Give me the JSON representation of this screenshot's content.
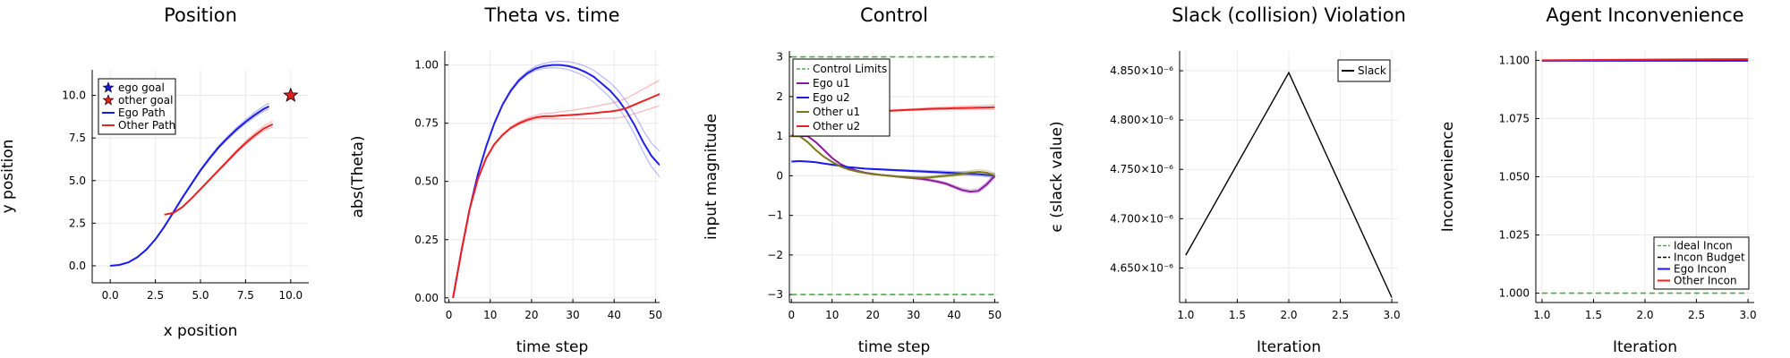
{
  "chart_data": [
    {
      "type": "line",
      "title": "Position",
      "xlabel": "x position",
      "ylabel": "y position",
      "xlim": [
        -1.0,
        11.0
      ],
      "ylim": [
        -1.0,
        11.5
      ],
      "xticks": [
        0.0,
        2.5,
        5.0,
        7.5,
        10.0
      ],
      "yticks": [
        0.0,
        2.5,
        5.0,
        7.5,
        10.0
      ],
      "xtick_labels": [
        "0.0",
        "2.5",
        "5.0",
        "7.5",
        "10.0"
      ],
      "ytick_labels": [
        "0.0",
        "2.5",
        "5.0",
        "7.5",
        "10.0"
      ],
      "grid": true,
      "legend_position": "top-left",
      "series": [
        {
          "name": "ego goal",
          "kind": "marker",
          "marker": "star",
          "color": "#1f1fd0",
          "x": [],
          "y": []
        },
        {
          "name": "other goal",
          "kind": "marker",
          "marker": "star",
          "color": "#e02020",
          "x": [
            10.0
          ],
          "y": [
            10.0
          ]
        },
        {
          "name": "Ego Path",
          "color": "#1a1aee",
          "x": [
            0.0,
            0.5,
            1.0,
            1.5,
            2.0,
            2.5,
            3.0,
            3.5,
            4.0,
            4.5,
            5.0,
            5.5,
            6.0,
            6.5,
            7.0,
            7.5,
            8.0,
            8.5,
            8.8
          ],
          "y": [
            0.0,
            0.05,
            0.2,
            0.5,
            0.95,
            1.55,
            2.3,
            3.15,
            4.0,
            4.8,
            5.6,
            6.3,
            6.95,
            7.5,
            8.0,
            8.45,
            8.85,
            9.2,
            9.35
          ]
        },
        {
          "name": "Other Path",
          "color": "#e82020",
          "x": [
            3.0,
            3.5,
            4.0,
            4.5,
            5.0,
            5.5,
            6.0,
            6.5,
            7.0,
            7.5,
            8.0,
            8.5,
            9.0
          ],
          "y": [
            3.0,
            3.1,
            3.45,
            3.95,
            4.5,
            5.05,
            5.6,
            6.15,
            6.7,
            7.2,
            7.65,
            8.05,
            8.3
          ]
        }
      ]
    },
    {
      "type": "line",
      "title": "Theta vs. time",
      "xlabel": "time step",
      "ylabel": "abs(Theta)",
      "xlim": [
        -1,
        51
      ],
      "ylim": [
        -0.02,
        1.06
      ],
      "xticks": [
        0,
        10,
        20,
        30,
        40,
        50
      ],
      "yticks": [
        0.0,
        0.25,
        0.5,
        0.75,
        1.0
      ],
      "xtick_labels": [
        "0",
        "10",
        "20",
        "30",
        "40",
        "50"
      ],
      "ytick_labels": [
        "0.00",
        "0.25",
        "0.50",
        "0.75",
        "1.00"
      ],
      "grid": true,
      "series": [
        {
          "color": "#2020ee",
          "x": [
            1,
            3,
            5,
            7,
            9,
            11,
            13,
            15,
            17,
            19,
            21,
            23,
            25,
            27,
            29,
            31,
            33,
            35,
            37,
            39,
            41,
            43,
            45,
            47,
            49,
            51
          ],
          "y": [
            0.0,
            0.2,
            0.38,
            0.53,
            0.65,
            0.75,
            0.83,
            0.89,
            0.935,
            0.965,
            0.985,
            0.995,
            1.0,
            1.0,
            0.995,
            0.985,
            0.97,
            0.95,
            0.92,
            0.89,
            0.85,
            0.8,
            0.74,
            0.67,
            0.61,
            0.57
          ]
        },
        {
          "color": "#ee2020",
          "x": [
            1,
            3,
            5,
            7,
            9,
            11,
            13,
            15,
            17,
            19,
            21,
            23,
            25,
            27,
            29,
            31,
            33,
            35,
            37,
            39,
            41,
            43,
            45,
            47,
            49,
            51
          ],
          "y": [
            0.0,
            0.2,
            0.38,
            0.51,
            0.6,
            0.66,
            0.7,
            0.73,
            0.75,
            0.765,
            0.775,
            0.78,
            0.78,
            0.783,
            0.785,
            0.787,
            0.79,
            0.793,
            0.797,
            0.8,
            0.805,
            0.815,
            0.83,
            0.845,
            0.86,
            0.875
          ]
        }
      ]
    },
    {
      "type": "line",
      "title": "Control",
      "xlabel": "time step",
      "ylabel": "input magnitude",
      "xlim": [
        -0.5,
        51
      ],
      "ylim": [
        -3.2,
        3.15
      ],
      "xticks": [
        0,
        10,
        20,
        30,
        40,
        50
      ],
      "yticks": [
        -3,
        -2,
        -1,
        0,
        1,
        2,
        3
      ],
      "xtick_labels": [
        "0",
        "10",
        "20",
        "30",
        "40",
        "50"
      ],
      "ytick_labels": [
        "−3",
        "−2",
        "−1",
        "0",
        "1",
        "2",
        "3"
      ],
      "grid": true,
      "legend_position": "top-left",
      "series": [
        {
          "name": "Control Limits",
          "color": "#55a355",
          "dashed": true,
          "x": [
            0,
            50
          ],
          "y": [
            3,
            3
          ]
        },
        {
          "name": "",
          "color": "#55a355",
          "dashed": true,
          "x": [
            0,
            50
          ],
          "y": [
            -3,
            -3
          ]
        },
        {
          "name": "Ego u1",
          "color": "#8a1a9e",
          "x": [
            0,
            2,
            4,
            6,
            8,
            10,
            12,
            14,
            16,
            18,
            20,
            22,
            24,
            26,
            28,
            30,
            32,
            34,
            36,
            38,
            40,
            42,
            44,
            46,
            48,
            50
          ],
          "y": [
            1.0,
            1.0,
            1.0,
            0.85,
            0.65,
            0.45,
            0.3,
            0.2,
            0.13,
            0.08,
            0.05,
            0.02,
            0.0,
            -0.02,
            -0.04,
            -0.06,
            -0.08,
            -0.11,
            -0.15,
            -0.2,
            -0.28,
            -0.36,
            -0.4,
            -0.38,
            -0.22,
            0.0
          ]
        },
        {
          "name": "Ego u2",
          "color": "#1a1aee",
          "x": [
            0,
            2,
            4,
            6,
            8,
            10,
            12,
            14,
            16,
            18,
            20,
            22,
            24,
            26,
            28,
            30,
            32,
            34,
            36,
            38,
            40,
            42,
            44,
            46,
            48,
            50
          ],
          "y": [
            0.36,
            0.37,
            0.36,
            0.34,
            0.31,
            0.28,
            0.25,
            0.22,
            0.2,
            0.18,
            0.17,
            0.16,
            0.15,
            0.14,
            0.13,
            0.12,
            0.11,
            0.1,
            0.09,
            0.08,
            0.07,
            0.06,
            0.05,
            0.04,
            0.02,
            0.0
          ]
        },
        {
          "name": "Other u1",
          "color": "#7a7a1a",
          "x": [
            0,
            2,
            4,
            6,
            8,
            10,
            12,
            14,
            16,
            18,
            20,
            22,
            24,
            26,
            28,
            30,
            32,
            34,
            36,
            38,
            40,
            42,
            44,
            46,
            48,
            50
          ],
          "y": [
            1.0,
            1.0,
            0.85,
            0.65,
            0.48,
            0.35,
            0.24,
            0.16,
            0.11,
            0.07,
            0.04,
            0.02,
            0.0,
            -0.02,
            -0.03,
            -0.04,
            -0.05,
            -0.04,
            -0.02,
            0.0,
            0.02,
            0.05,
            0.08,
            0.1,
            0.08,
            0.0
          ]
        },
        {
          "name": "Other u2",
          "color": "#ee2020",
          "x": [
            0,
            2,
            4,
            6,
            8,
            10,
            12,
            14,
            16,
            18,
            20,
            22,
            24,
            26,
            28,
            30,
            32,
            34,
            36,
            38,
            40,
            42,
            44,
            46,
            48,
            50
          ],
          "y": [
            1.0,
            1.15,
            1.28,
            1.38,
            1.45,
            1.5,
            1.54,
            1.57,
            1.59,
            1.61,
            1.62,
            1.63,
            1.64,
            1.65,
            1.66,
            1.67,
            1.68,
            1.69,
            1.695,
            1.7,
            1.705,
            1.71,
            1.715,
            1.72,
            1.725,
            1.73
          ]
        }
      ]
    },
    {
      "type": "line",
      "title": "Slack (collision) Violation",
      "xlabel": "Iteration",
      "ylabel": "ϵ (slack value)",
      "xlim": [
        0.94,
        3.06
      ],
      "ylim": [
        4.615e-06,
        4.87e-06
      ],
      "xticks": [
        1.0,
        1.5,
        2.0,
        2.5,
        3.0
      ],
      "yticks": [
        4.65e-06,
        4.7e-06,
        4.75e-06,
        4.8e-06,
        4.85e-06
      ],
      "xtick_labels": [
        "1.0",
        "1.5",
        "2.0",
        "2.5",
        "3.0"
      ],
      "ytick_labels": [
        "4.650×10⁻⁶",
        "4.700×10⁻⁶",
        "4.750×10⁻⁶",
        "4.800×10⁻⁶",
        "4.850×10⁻⁶"
      ],
      "grid": true,
      "legend_position": "top-right",
      "series": [
        {
          "name": "Slack",
          "color": "#000000",
          "x": [
            1.0,
            2.0,
            3.0
          ],
          "y": [
            4.663e-06,
            4.848e-06,
            4.62e-06
          ]
        }
      ]
    },
    {
      "type": "line",
      "title": "Agent Inconvenience",
      "xlabel": "Iteration",
      "ylabel": "Inconvenience",
      "xlim": [
        0.94,
        3.06
      ],
      "ylim": [
        0.996,
        1.104
      ],
      "xticks": [
        1.0,
        1.5,
        2.0,
        2.5,
        3.0
      ],
      "yticks": [
        1.0,
        1.025,
        1.05,
        1.075,
        1.1
      ],
      "xtick_labels": [
        "1.0",
        "1.5",
        "2.0",
        "2.5",
        "3.0"
      ],
      "ytick_labels": [
        "1.000",
        "1.025",
        "1.050",
        "1.075",
        "1.100"
      ],
      "grid": true,
      "legend_position": "bottom-right",
      "series": [
        {
          "name": "Ideal Incon",
          "color": "#55a355",
          "dashed": true,
          "x": [
            1.0,
            2.0,
            3.0
          ],
          "y": [
            1.0,
            1.0,
            1.0
          ]
        },
        {
          "name": "Incon Budget",
          "color": "#000000",
          "dashed": true,
          "x": [
            1.0,
            2.0,
            3.0
          ],
          "y": [
            1.1,
            1.1,
            1.1
          ]
        },
        {
          "name": "Ego Incon",
          "color": "#1a1aee",
          "x": [
            1.0,
            2.0,
            3.0
          ],
          "y": [
            1.0998,
            1.0998,
            1.0998
          ]
        },
        {
          "name": "Other Incon",
          "color": "#ee2020",
          "x": [
            1.0,
            2.0,
            3.0
          ],
          "y": [
            1.1,
            1.1003,
            1.1005
          ]
        }
      ]
    }
  ]
}
